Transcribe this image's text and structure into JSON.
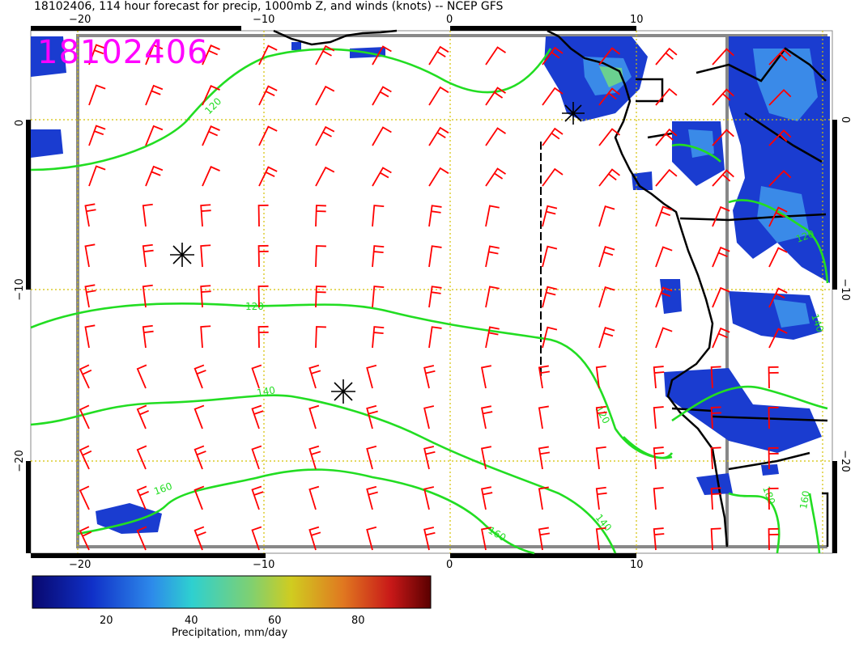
{
  "title": "18102406, 114 hour forecast for precip, 1000mb Z, and winds (knots) -- NCEP GFS",
  "stamp": "18102406",
  "axes": {
    "x_ticks": [
      "−20",
      "−10",
      "0",
      "10"
    ],
    "y_ticks": [
      "0",
      "−10",
      "−20"
    ]
  },
  "contour_labels": [
    "120",
    "120",
    "140",
    "160",
    "120",
    "140",
    "160",
    "120",
    "140",
    "180",
    "160"
  ],
  "colorbar": {
    "label": "Precipitation, mm/day",
    "ticks": [
      "20",
      "40",
      "60",
      "80"
    ],
    "colors": [
      "#0a0a8c",
      "#1a3cd0",
      "#3a8ae8",
      "#40c8d8",
      "#6ad090",
      "#c8cc30",
      "#e08a20",
      "#c82020",
      "#780a0a"
    ]
  },
  "colors": {
    "wind_barbs": "#ff0000",
    "contours": "#22dd22",
    "grid": "#d4c000",
    "coast": "#000000",
    "stamp": "#ff00ff"
  }
}
